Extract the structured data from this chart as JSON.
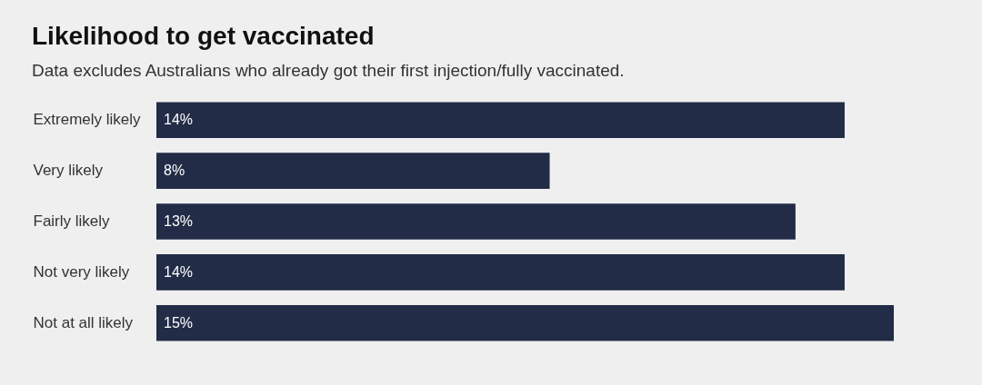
{
  "chart_data": {
    "type": "bar",
    "orientation": "horizontal",
    "title": "Likelihood to get vaccinated",
    "subtitle": "Data excludes Australians who already got their first injection/fully vaccinated.",
    "categories": [
      "Extremely likely",
      "Very likely",
      "Fairly likely",
      "Not very likely",
      "Not at all likely"
    ],
    "values": [
      14,
      8,
      13,
      14,
      15
    ],
    "value_labels": [
      "14%",
      "8%",
      "13%",
      "14%",
      "15%"
    ],
    "color": "#222c47",
    "xlim": [
      0,
      15
    ],
    "tick_labels": "y"
  }
}
